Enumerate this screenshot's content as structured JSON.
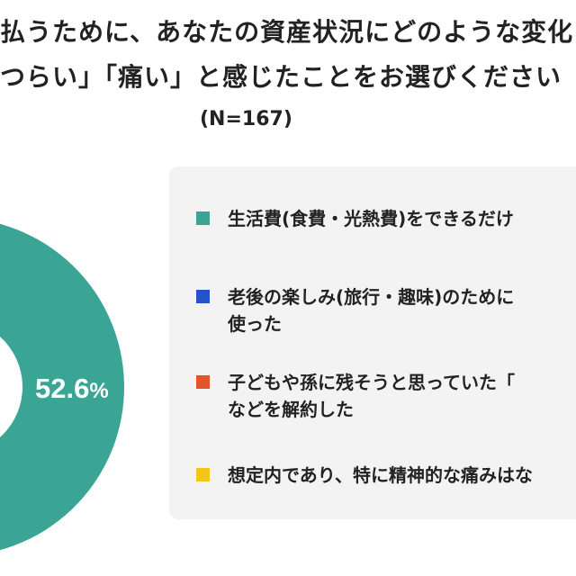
{
  "title": {
    "line1": "払うために、あなたの資産状況にどのような変化",
    "line2": "つらい」「痛い」と感じたことをお選びください"
  },
  "sample_size": "(N=167)",
  "chart_data": {
    "type": "donut",
    "title": "",
    "slices": [
      {
        "label": "生活費(食費・光熱費)をできるだけ",
        "value": 52.6,
        "color": "#3aa595"
      }
    ],
    "data_label": {
      "number": "52.6",
      "unit": "%"
    }
  },
  "legend": [
    {
      "lines": [
        "生活費(食費・光熱費)をできるだけ"
      ],
      "color": "#3aa595"
    },
    {
      "lines": [
        "老後の楽しみ(旅行・趣味)のために",
        "使った"
      ],
      "color": "#2453c9"
    },
    {
      "lines": [
        "子どもや孫に残そうと思っていた「",
        "などを解約した"
      ],
      "color": "#e4532b"
    },
    {
      "lines": [
        "想定内であり、特に精神的な痛みはな"
      ],
      "color": "#f5c518"
    }
  ]
}
